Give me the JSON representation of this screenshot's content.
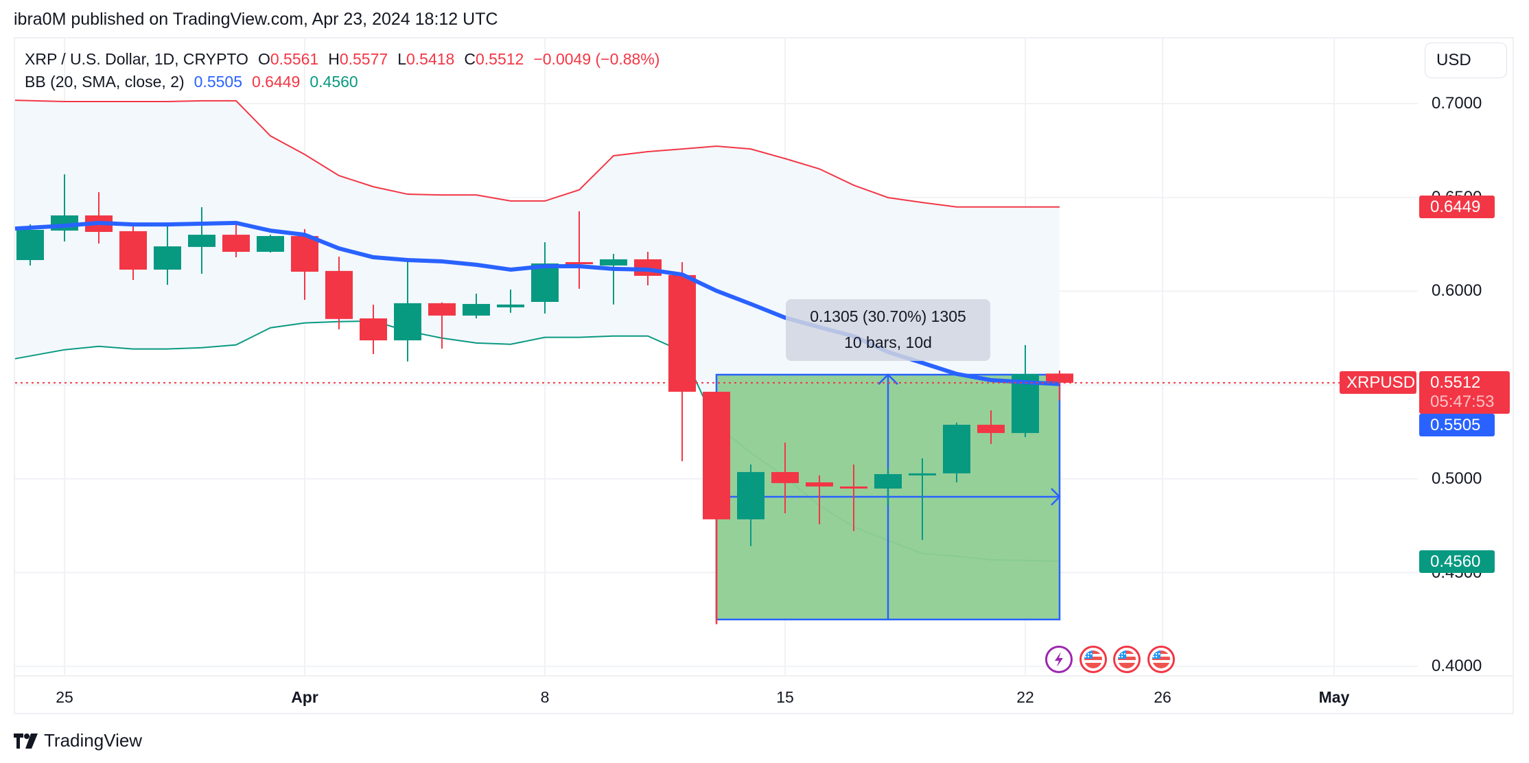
{
  "header": {
    "published": "ibra0M published on TradingView.com, Apr 23, 2024 18:12 UTC"
  },
  "legend": {
    "symbol": "XRP / U.S. Dollar, 1D, CRYPTO",
    "o_label": "O",
    "o_value": "0.5561",
    "h_label": "H",
    "h_value": "0.5577",
    "l_label": "L",
    "l_value": "0.5418",
    "c_label": "C",
    "c_value": "0.5512",
    "change": "−0.0049 (−0.88%)",
    "bb_label": "BB (20, SMA, close, 2)",
    "bb_basis": "0.5505",
    "bb_upper": "0.6449",
    "bb_lower": "0.4560"
  },
  "currency_button": "USD",
  "price_axis": {
    "ticks": [
      "0.7000",
      "0.6500",
      "0.6000",
      "0.5500",
      "0.5000",
      "0.4500",
      "0.4000"
    ],
    "labels": {
      "symbol_tag": "XRPUSD",
      "last_price": "0.5512",
      "countdown": "05:47:53",
      "bb_basis": "0.5505",
      "bb_upper": "0.6449",
      "bb_lower": "0.4560"
    }
  },
  "time_axis": {
    "ticks": [
      {
        "label": "25",
        "bold": false
      },
      {
        "label": "Apr",
        "bold": true
      },
      {
        "label": "8",
        "bold": false
      },
      {
        "label": "15",
        "bold": false
      },
      {
        "label": "22",
        "bold": false
      },
      {
        "label": "26",
        "bold": false
      },
      {
        "label": "May",
        "bold": true
      }
    ]
  },
  "measure": {
    "line1": "0.1305 (30.70%) 1305",
    "line2": "10 bars, 10d"
  },
  "events": [
    {
      "type": "lightning-icon"
    },
    {
      "type": "us-flag-icon"
    },
    {
      "type": "us-flag-icon"
    },
    {
      "type": "us-flag-icon"
    }
  ],
  "footer": {
    "brand": "TradingView"
  },
  "colors": {
    "up": "#089981",
    "down": "#f23645",
    "basis": "#2962ff",
    "upper": "#f23645",
    "lower": "#089981",
    "band_fill": "#f3f8fd",
    "measure_fill": "#8fcd94",
    "measure_line": "#2962ff"
  },
  "chart_data": {
    "type": "candlestick",
    "title": "XRP / U.S. Dollar, 1D, CRYPTO",
    "ylabel": "USD",
    "ylim": [
      0.39,
      0.72
    ],
    "y_ticks": [
      0.4,
      0.45,
      0.5,
      0.55,
      0.6,
      0.65,
      0.7
    ],
    "x_tick_labels": [
      "25",
      "Apr",
      "8",
      "15",
      "22",
      "26",
      "May"
    ],
    "grid": true,
    "dates": [
      "Mar 24",
      "Mar 25",
      "Mar 26",
      "Mar 27",
      "Mar 28",
      "Mar 29",
      "Mar 30",
      "Mar 31",
      "Apr 1",
      "Apr 2",
      "Apr 3",
      "Apr 4",
      "Apr 5",
      "Apr 6",
      "Apr 7",
      "Apr 8",
      "Apr 9",
      "Apr 10",
      "Apr 11",
      "Apr 12",
      "Apr 13",
      "Apr 14",
      "Apr 15",
      "Apr 16",
      "Apr 17",
      "Apr 18",
      "Apr 19",
      "Apr 20",
      "Apr 21",
      "Apr 22",
      "Apr 23"
    ],
    "ohlc": [
      [
        0.6166,
        0.6356,
        0.6137,
        0.6327
      ],
      [
        0.6323,
        0.6623,
        0.6265,
        0.6404
      ],
      [
        0.6404,
        0.6528,
        0.6254,
        0.6316
      ],
      [
        0.632,
        0.6345,
        0.606,
        0.6115
      ],
      [
        0.6115,
        0.6367,
        0.6034,
        0.6239
      ],
      [
        0.6236,
        0.6448,
        0.6093,
        0.6301
      ],
      [
        0.6301,
        0.6371,
        0.6181,
        0.621
      ],
      [
        0.621,
        0.6301,
        0.6206,
        0.6294
      ],
      [
        0.6294,
        0.6331,
        0.5954,
        0.6104
      ],
      [
        0.6108,
        0.6184,
        0.5797,
        0.5852
      ],
      [
        0.5855,
        0.5928,
        0.5665,
        0.5738
      ],
      [
        0.5738,
        0.6166,
        0.5625,
        0.5936
      ],
      [
        0.5936,
        0.594,
        0.5694,
        0.587
      ],
      [
        0.587,
        0.5987,
        0.5855,
        0.5932
      ],
      [
        0.5914,
        0.6009,
        0.5885,
        0.5929
      ],
      [
        0.5943,
        0.6261,
        0.5881,
        0.6148
      ],
      [
        0.6155,
        0.6426,
        0.6013,
        0.6148
      ],
      [
        0.6137,
        0.6199,
        0.5929,
        0.617
      ],
      [
        0.617,
        0.621,
        0.6031,
        0.6082
      ],
      [
        0.6086,
        0.6155,
        0.5094,
        0.5464
      ],
      [
        0.5464,
        0.5464,
        0.4231,
        0.4784
      ],
      [
        0.4784,
        0.5076,
        0.4641,
        0.5036
      ],
      [
        0.5036,
        0.5193,
        0.4816,
        0.4977
      ],
      [
        0.4981,
        0.5018,
        0.4758,
        0.4959
      ],
      [
        0.4959,
        0.5076,
        0.4721,
        0.4948
      ],
      [
        0.4948,
        0.5058,
        0.4857,
        0.5025
      ],
      [
        0.5025,
        0.5109,
        0.4674,
        0.5029
      ],
      [
        0.5029,
        0.5299,
        0.4981,
        0.5288
      ],
      [
        0.5288,
        0.5365,
        0.5186,
        0.5244
      ],
      [
        0.5244,
        0.5713,
        0.5222,
        0.5559
      ],
      [
        0.5561,
        0.5577,
        0.5418,
        0.5512
      ]
    ],
    "series": [
      {
        "name": "BB basis (SMA 20)",
        "values": [
          0.6334,
          0.6349,
          0.6364,
          0.6356,
          0.6356,
          0.636,
          0.6364,
          0.6323,
          0.6301,
          0.6228,
          0.6181,
          0.6166,
          0.6159,
          0.6141,
          0.6115,
          0.6133,
          0.6133,
          0.6119,
          0.6115,
          0.6089,
          0.6002,
          0.5932,
          0.5859,
          0.5808,
          0.576,
          0.5676,
          0.5618,
          0.5559,
          0.5526,
          0.5515,
          0.5505
        ]
      },
      {
        "name": "BB upper",
        "values": [
          0.7018,
          0.7011,
          0.7011,
          0.7011,
          0.7011,
          0.7015,
          0.7015,
          0.6828,
          0.6729,
          0.6616,
          0.6557,
          0.6517,
          0.6513,
          0.6513,
          0.6481,
          0.6481,
          0.654,
          0.6722,
          0.6744,
          0.6758,
          0.6773,
          0.6758,
          0.6707,
          0.6652,
          0.6565,
          0.6499,
          0.6473,
          0.6449,
          0.6449,
          0.6449,
          0.6449
        ]
      },
      {
        "name": "BB lower",
        "values": [
          0.564,
          0.5688,
          0.5706,
          0.5692,
          0.5692,
          0.5699,
          0.5714,
          0.5805,
          0.5831,
          0.5838,
          0.5841,
          0.5787,
          0.575,
          0.5724,
          0.5717,
          0.5754,
          0.5754,
          0.5761,
          0.5761,
          0.568,
          0.5284,
          0.5139,
          0.5011,
          0.4857,
          0.4744,
          0.4671,
          0.4602,
          0.4587,
          0.4568,
          0.4565,
          0.456
        ]
      }
    ],
    "measure_tool": {
      "from_date": "Apr 13",
      "to_date": "Apr 23",
      "from_price": 0.425,
      "to_price": 0.5555,
      "change": 0.1305,
      "change_pct": 30.7,
      "bars": 10
    },
    "last_price": 0.5512
  }
}
